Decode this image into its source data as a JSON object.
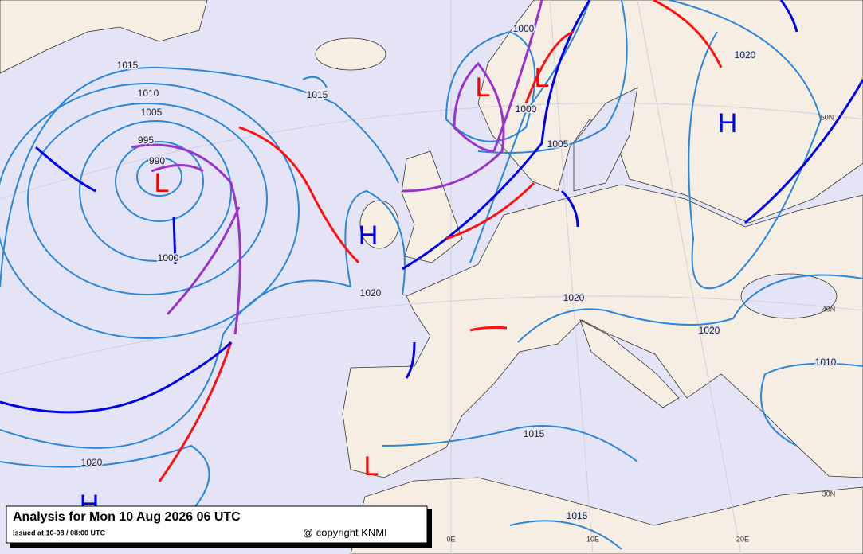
{
  "map": {
    "isobar_labels": [
      1015,
      1010,
      1005,
      995,
      990,
      1000,
      1015,
      1020,
      1000,
      1000,
      1005,
      1020,
      1020,
      1020,
      1010,
      1015,
      1020,
      1015
    ],
    "centers": [
      "L",
      "L",
      "L",
      "H",
      "H",
      "L",
      "H"
    ],
    "grid_labels": [
      "50N",
      "40N",
      "30N",
      "0E",
      "10E",
      "20E"
    ],
    "title": "Analysis for Mon 10 Aug 2026 06 UTC",
    "issued": "Issued at 10-08 / 08:00 UTC",
    "copyright": "@ copyright KNMI"
  }
}
